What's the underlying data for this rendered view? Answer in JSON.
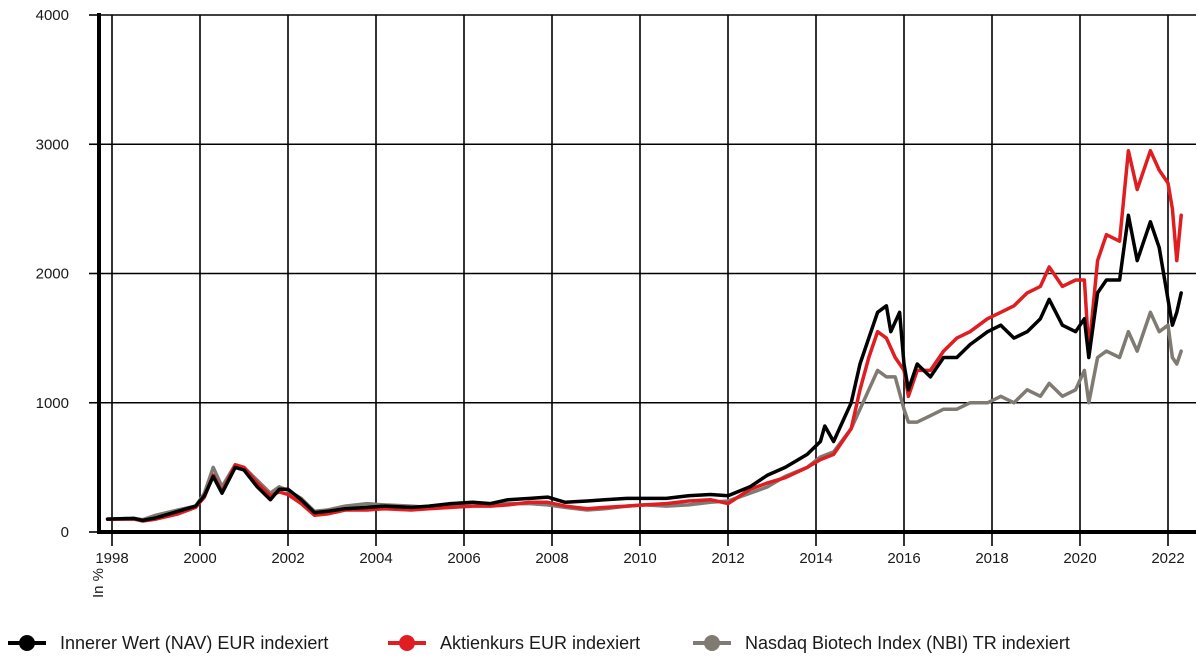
{
  "chart_data": {
    "type": "line",
    "title": "",
    "xlabel": "",
    "ylabel": "In %",
    "xlim": [
      1997.7,
      2022.4
    ],
    "ylim": [
      0,
      4000
    ],
    "x_ticks": [
      1998,
      2000,
      2002,
      2004,
      2006,
      2008,
      2010,
      2012,
      2014,
      2016,
      2018,
      2020,
      2022
    ],
    "y_ticks": [
      0,
      1000,
      2000,
      3000,
      4000
    ],
    "grid": true,
    "legend_position": "bottom",
    "series": [
      {
        "name": "Innerer Wert (NAV) EUR indexiert",
        "color": "#000000",
        "points": [
          [
            1997.9,
            100
          ],
          [
            1998.5,
            105
          ],
          [
            1998.7,
            90
          ],
          [
            1999.0,
            110
          ],
          [
            1999.5,
            160
          ],
          [
            1999.9,
            200
          ],
          [
            2000.1,
            280
          ],
          [
            2000.3,
            430
          ],
          [
            2000.5,
            300
          ],
          [
            2000.8,
            500
          ],
          [
            2001.0,
            480
          ],
          [
            2001.3,
            350
          ],
          [
            2001.6,
            250
          ],
          [
            2001.8,
            330
          ],
          [
            2002.0,
            330
          ],
          [
            2002.3,
            250
          ],
          [
            2002.6,
            150
          ],
          [
            2002.9,
            160
          ],
          [
            2003.3,
            180
          ],
          [
            2003.8,
            190
          ],
          [
            2004.2,
            200
          ],
          [
            2004.8,
            190
          ],
          [
            2005.2,
            200
          ],
          [
            2005.7,
            220
          ],
          [
            2006.2,
            230
          ],
          [
            2006.6,
            220
          ],
          [
            2007.0,
            250
          ],
          [
            2007.5,
            260
          ],
          [
            2007.9,
            270
          ],
          [
            2008.3,
            230
          ],
          [
            2008.8,
            240
          ],
          [
            2009.2,
            250
          ],
          [
            2009.7,
            260
          ],
          [
            2010.1,
            260
          ],
          [
            2010.6,
            260
          ],
          [
            2011.1,
            280
          ],
          [
            2011.6,
            290
          ],
          [
            2012.0,
            280
          ],
          [
            2012.5,
            350
          ],
          [
            2012.9,
            440
          ],
          [
            2013.3,
            500
          ],
          [
            2013.8,
            600
          ],
          [
            2014.1,
            700
          ],
          [
            2014.2,
            820
          ],
          [
            2014.4,
            700
          ],
          [
            2014.6,
            850
          ],
          [
            2014.8,
            1000
          ],
          [
            2015.0,
            1300
          ],
          [
            2015.2,
            1500
          ],
          [
            2015.4,
            1700
          ],
          [
            2015.6,
            1750
          ],
          [
            2015.7,
            1550
          ],
          [
            2015.9,
            1700
          ],
          [
            2016.0,
            1300
          ],
          [
            2016.1,
            1100
          ],
          [
            2016.3,
            1300
          ],
          [
            2016.6,
            1200
          ],
          [
            2016.9,
            1350
          ],
          [
            2017.2,
            1350
          ],
          [
            2017.5,
            1450
          ],
          [
            2017.9,
            1550
          ],
          [
            2018.2,
            1600
          ],
          [
            2018.5,
            1500
          ],
          [
            2018.8,
            1550
          ],
          [
            2019.1,
            1650
          ],
          [
            2019.3,
            1800
          ],
          [
            2019.6,
            1600
          ],
          [
            2019.9,
            1550
          ],
          [
            2020.1,
            1650
          ],
          [
            2020.2,
            1350
          ],
          [
            2020.4,
            1850
          ],
          [
            2020.6,
            1950
          ],
          [
            2020.9,
            1950
          ],
          [
            2021.1,
            2450
          ],
          [
            2021.3,
            2100
          ],
          [
            2021.6,
            2400
          ],
          [
            2021.8,
            2200
          ],
          [
            2022.0,
            1800
          ],
          [
            2022.1,
            1600
          ],
          [
            2022.2,
            1700
          ],
          [
            2022.3,
            1850
          ]
        ]
      },
      {
        "name": "Aktienkurs EUR indexiert",
        "color": "#e01d20",
        "points": [
          [
            1997.9,
            100
          ],
          [
            1998.5,
            100
          ],
          [
            1998.7,
            85
          ],
          [
            1999.0,
            100
          ],
          [
            1999.5,
            140
          ],
          [
            1999.9,
            190
          ],
          [
            2000.1,
            270
          ],
          [
            2000.3,
            440
          ],
          [
            2000.5,
            310
          ],
          [
            2000.8,
            520
          ],
          [
            2001.0,
            500
          ],
          [
            2001.3,
            380
          ],
          [
            2001.6,
            280
          ],
          [
            2001.8,
            310
          ],
          [
            2002.0,
            290
          ],
          [
            2002.3,
            220
          ],
          [
            2002.6,
            130
          ],
          [
            2002.9,
            140
          ],
          [
            2003.3,
            170
          ],
          [
            2003.8,
            170
          ],
          [
            2004.2,
            180
          ],
          [
            2004.8,
            170
          ],
          [
            2005.2,
            180
          ],
          [
            2005.7,
            190
          ],
          [
            2006.2,
            200
          ],
          [
            2006.6,
            200
          ],
          [
            2007.0,
            210
          ],
          [
            2007.5,
            230
          ],
          [
            2007.9,
            230
          ],
          [
            2008.3,
            200
          ],
          [
            2008.8,
            180
          ],
          [
            2009.2,
            190
          ],
          [
            2009.7,
            200
          ],
          [
            2010.1,
            210
          ],
          [
            2010.6,
            220
          ],
          [
            2011.1,
            240
          ],
          [
            2011.6,
            250
          ],
          [
            2012.0,
            220
          ],
          [
            2012.5,
            330
          ],
          [
            2012.9,
            380
          ],
          [
            2013.3,
            420
          ],
          [
            2013.8,
            500
          ],
          [
            2014.1,
            560
          ],
          [
            2014.4,
            600
          ],
          [
            2014.8,
            800
          ],
          [
            2015.0,
            1100
          ],
          [
            2015.2,
            1350
          ],
          [
            2015.4,
            1550
          ],
          [
            2015.6,
            1500
          ],
          [
            2015.8,
            1350
          ],
          [
            2016.0,
            1250
          ],
          [
            2016.1,
            1050
          ],
          [
            2016.3,
            1250
          ],
          [
            2016.6,
            1250
          ],
          [
            2016.9,
            1400
          ],
          [
            2017.2,
            1500
          ],
          [
            2017.5,
            1550
          ],
          [
            2017.9,
            1650
          ],
          [
            2018.2,
            1700
          ],
          [
            2018.5,
            1750
          ],
          [
            2018.8,
            1850
          ],
          [
            2019.1,
            1900
          ],
          [
            2019.3,
            2050
          ],
          [
            2019.6,
            1900
          ],
          [
            2019.9,
            1950
          ],
          [
            2020.1,
            1950
          ],
          [
            2020.2,
            1400
          ],
          [
            2020.4,
            2100
          ],
          [
            2020.6,
            2300
          ],
          [
            2020.9,
            2250
          ],
          [
            2021.1,
            2950
          ],
          [
            2021.3,
            2650
          ],
          [
            2021.6,
            2950
          ],
          [
            2021.8,
            2800
          ],
          [
            2022.0,
            2700
          ],
          [
            2022.1,
            2500
          ],
          [
            2022.2,
            2100
          ],
          [
            2022.3,
            2450
          ]
        ]
      },
      {
        "name": "Nasdaq Biotech Index (NBI) TR indexiert",
        "color": "#7f7a72",
        "points": [
          [
            1997.9,
            100
          ],
          [
            1998.5,
            105
          ],
          [
            1998.7,
            95
          ],
          [
            1999.0,
            130
          ],
          [
            1999.5,
            170
          ],
          [
            1999.9,
            200
          ],
          [
            2000.1,
            300
          ],
          [
            2000.3,
            500
          ],
          [
            2000.5,
            350
          ],
          [
            2000.8,
            520
          ],
          [
            2001.0,
            500
          ],
          [
            2001.3,
            400
          ],
          [
            2001.6,
            300
          ],
          [
            2001.8,
            350
          ],
          [
            2002.0,
            320
          ],
          [
            2002.3,
            260
          ],
          [
            2002.6,
            160
          ],
          [
            2002.9,
            170
          ],
          [
            2003.3,
            200
          ],
          [
            2003.8,
            220
          ],
          [
            2004.2,
            210
          ],
          [
            2004.8,
            200
          ],
          [
            2005.2,
            190
          ],
          [
            2005.7,
            210
          ],
          [
            2006.2,
            230
          ],
          [
            2006.6,
            210
          ],
          [
            2007.0,
            220
          ],
          [
            2007.5,
            220
          ],
          [
            2007.9,
            210
          ],
          [
            2008.3,
            190
          ],
          [
            2008.8,
            170
          ],
          [
            2009.2,
            180
          ],
          [
            2009.7,
            200
          ],
          [
            2010.1,
            210
          ],
          [
            2010.6,
            200
          ],
          [
            2011.1,
            210
          ],
          [
            2011.6,
            230
          ],
          [
            2012.0,
            240
          ],
          [
            2012.5,
            300
          ],
          [
            2012.9,
            350
          ],
          [
            2013.3,
            430
          ],
          [
            2013.8,
            500
          ],
          [
            2014.1,
            580
          ],
          [
            2014.4,
            620
          ],
          [
            2014.8,
            800
          ],
          [
            2015.0,
            950
          ],
          [
            2015.2,
            1100
          ],
          [
            2015.4,
            1250
          ],
          [
            2015.6,
            1200
          ],
          [
            2015.8,
            1200
          ],
          [
            2016.0,
            950
          ],
          [
            2016.1,
            850
          ],
          [
            2016.3,
            850
          ],
          [
            2016.6,
            900
          ],
          [
            2016.9,
            950
          ],
          [
            2017.2,
            950
          ],
          [
            2017.5,
            1000
          ],
          [
            2017.9,
            1000
          ],
          [
            2018.2,
            1050
          ],
          [
            2018.5,
            1000
          ],
          [
            2018.8,
            1100
          ],
          [
            2019.1,
            1050
          ],
          [
            2019.3,
            1150
          ],
          [
            2019.6,
            1050
          ],
          [
            2019.9,
            1100
          ],
          [
            2020.1,
            1250
          ],
          [
            2020.2,
            1000
          ],
          [
            2020.4,
            1350
          ],
          [
            2020.6,
            1400
          ],
          [
            2020.9,
            1350
          ],
          [
            2021.1,
            1550
          ],
          [
            2021.3,
            1400
          ],
          [
            2021.6,
            1700
          ],
          [
            2021.8,
            1550
          ],
          [
            2022.0,
            1600
          ],
          [
            2022.1,
            1350
          ],
          [
            2022.2,
            1300
          ],
          [
            2022.3,
            1400
          ]
        ]
      }
    ]
  }
}
